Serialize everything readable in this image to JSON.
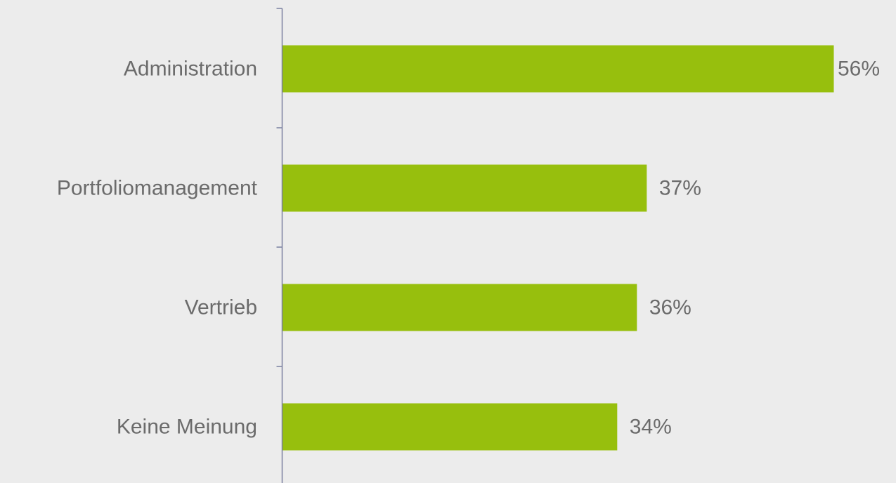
{
  "chart_data": {
    "type": "bar",
    "orientation": "horizontal",
    "categories": [
      "Administration",
      "Portfoliomanagement",
      "Vertrieb",
      "Keine Meinung"
    ],
    "values": [
      56,
      37,
      36,
      34
    ],
    "value_labels": [
      "56%",
      "37%",
      "36%",
      "34%"
    ],
    "unit": "%",
    "xlim": [
      0,
      56
    ],
    "grid": false,
    "legend": "none",
    "colors": {
      "bar": "#97bf0d",
      "axis": "#7a80a0",
      "text": "#6b6b6b",
      "background": "#ececec"
    }
  }
}
